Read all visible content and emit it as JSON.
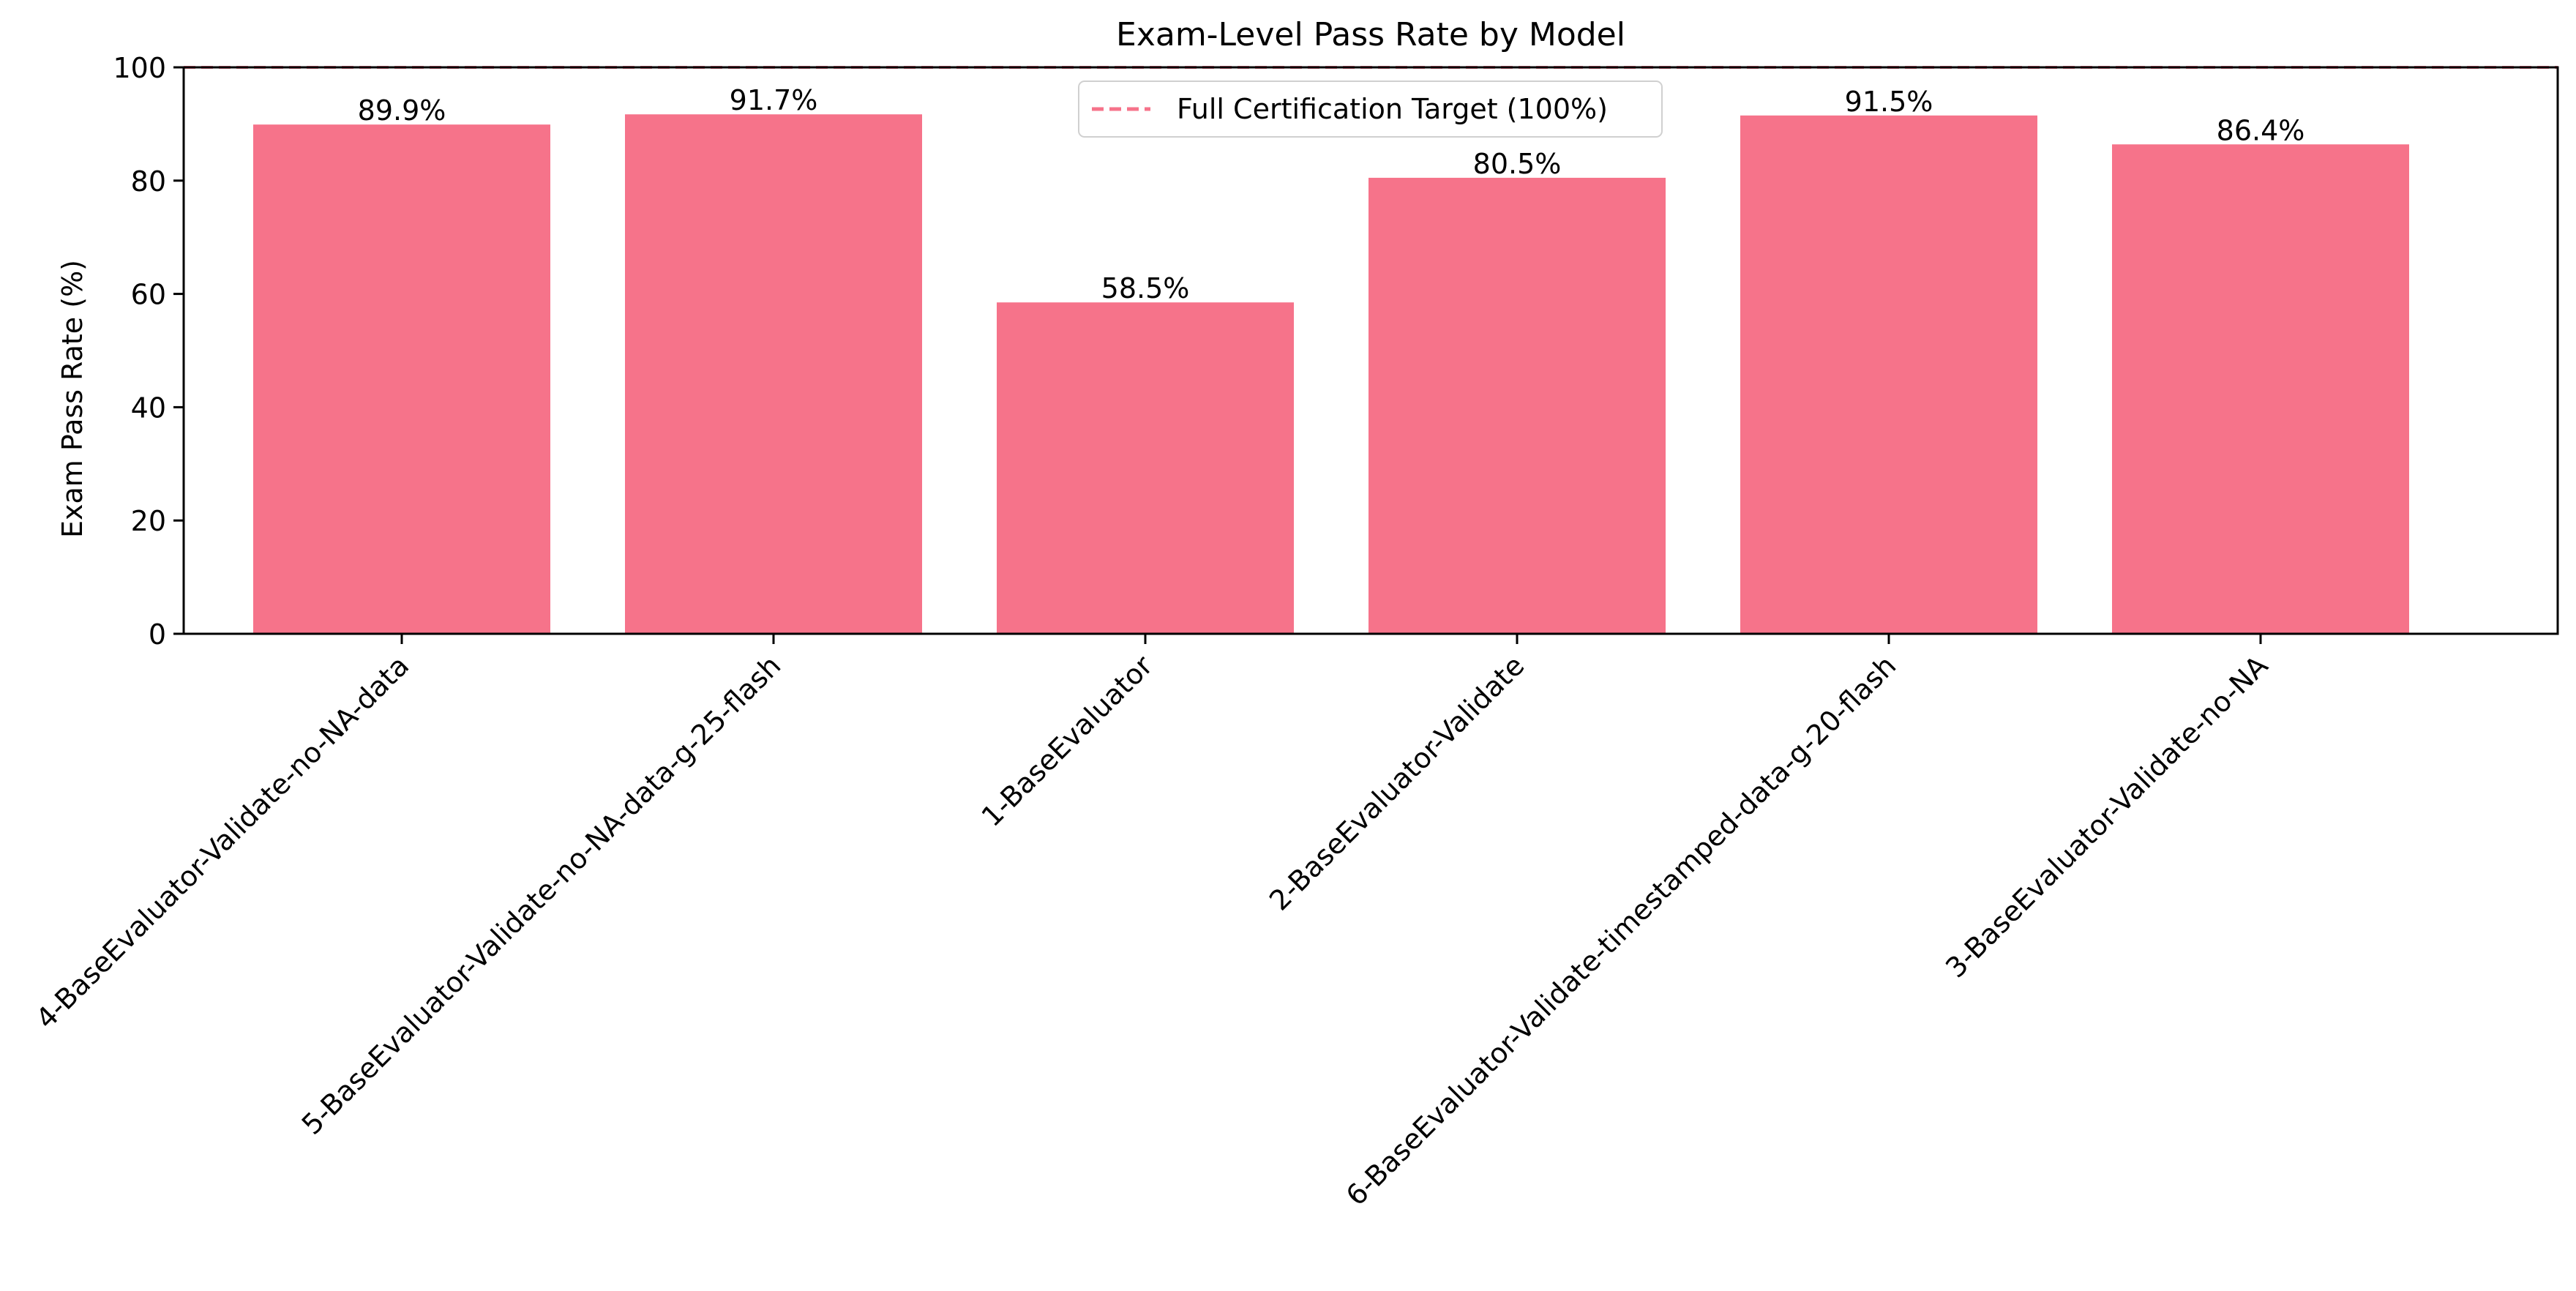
{
  "chart_data": {
    "type": "bar",
    "title": "Exam-Level Pass Rate by Model",
    "xlabel": "",
    "ylabel": "Exam Pass Rate (%)",
    "ylim": [
      0,
      100
    ],
    "yticks": [
      "0",
      "20",
      "40",
      "60",
      "80",
      "100"
    ],
    "categories": [
      "4-BaseEvaluator-Validate-no-NA-data",
      "5-BaseEvaluator-Validate-no-NA-data-g-25-flash",
      "1-BaseEvaluator",
      "2-BaseEvaluator-Validate",
      "6-BaseEvaluator-Validate-timestamped-data-g-20-flash",
      "3-BaseEvaluator-Validate-no-NA"
    ],
    "values": [
      89.9,
      91.7,
      58.5,
      80.5,
      91.5,
      86.4
    ],
    "bar_labels": [
      "89.9%",
      "91.7%",
      "58.5%",
      "80.5%",
      "91.5%",
      "86.4%"
    ],
    "reference_line": {
      "value": 100,
      "label": "Full Certification Target (100%)",
      "style": "dashed"
    },
    "legend_position": "top-center",
    "grid": false,
    "colors": {
      "bar": "#f6738a",
      "reference": "#f6738a"
    }
  }
}
